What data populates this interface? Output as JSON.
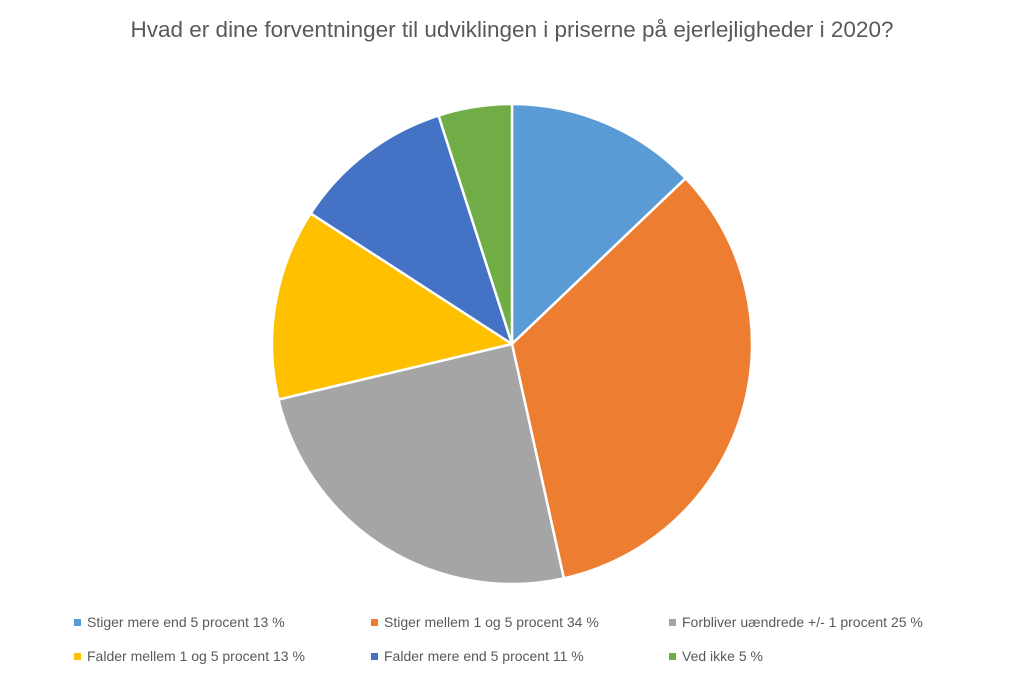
{
  "chart_data": {
    "type": "pie",
    "title": "Hvad er dine forventninger til udviklingen i priserne på ejerlejligheder i 2020?",
    "categories": [
      "Stiger mere end 5 procent 13 %",
      "Stiger mellem 1 og 5 procent 34 %",
      "Forbliver uændrede +/- 1 procent 25 %",
      "Falder mellem 1 og 5 procent 13 %",
      "Falder mere end 5 procent 11 %",
      "Ved ikke 5 %"
    ],
    "values": [
      13,
      34,
      25,
      13,
      11,
      5
    ],
    "colors": [
      "#5B9BD5",
      "#ED7D31",
      "#A5A5A5",
      "#FFC000",
      "#4472C4",
      "#70AD47"
    ],
    "legend_position": "bottom",
    "start_angle": "12 o'clock, clockwise"
  }
}
